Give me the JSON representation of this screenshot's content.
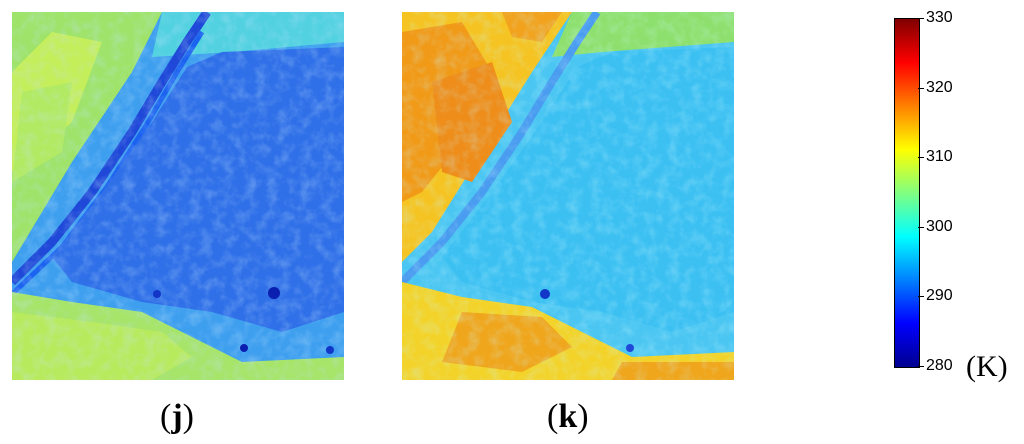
{
  "panels": [
    {
      "label_open": "(",
      "label_letter": "j",
      "label_close": ")"
    },
    {
      "label_open": "(",
      "label_letter": "k",
      "label_close": ")"
    }
  ],
  "colorbar": {
    "ticks": [
      "330",
      "320",
      "310",
      "300",
      "290",
      "280"
    ],
    "min": 280,
    "max": 330,
    "unit": "(K)",
    "colormap": [
      "#00008f",
      "#0000ff",
      "#0080ff",
      "#00ffff",
      "#80ff80",
      "#ffff00",
      "#ff8000",
      "#ff0000",
      "#800000"
    ]
  }
}
